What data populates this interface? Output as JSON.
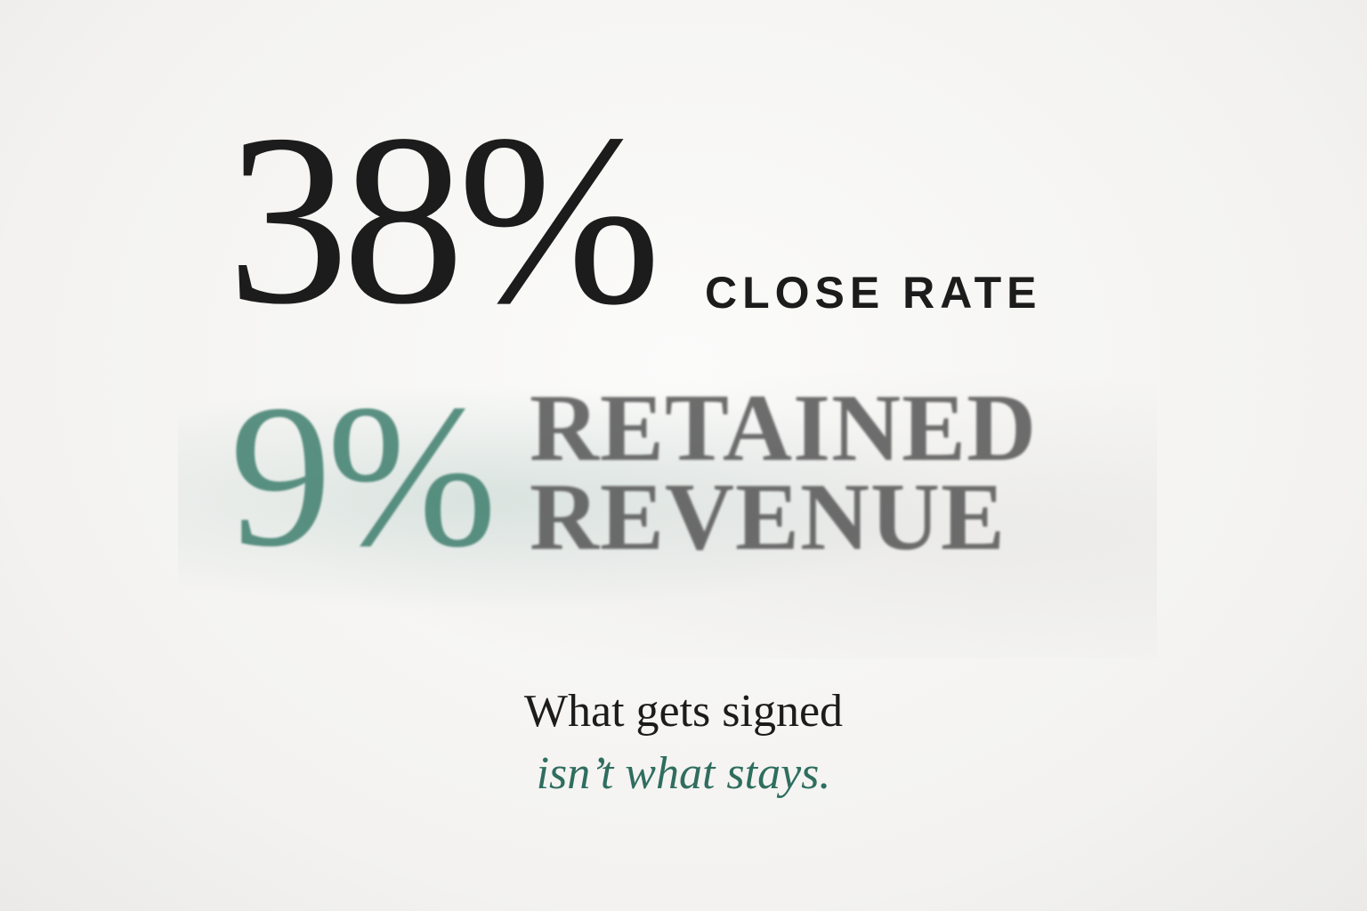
{
  "headline": {
    "value": "38%",
    "label": "CLOSE RATE"
  },
  "secondary": {
    "value": "9%",
    "label_line1": "RETAINED",
    "label_line2": "REVENUE"
  },
  "tagline": {
    "line1": "What gets signed",
    "line2": "isn’t what stays."
  },
  "colors": {
    "ink": "#1c1c1c",
    "accent": "#2f6e5f",
    "background": "#f4f3f1"
  }
}
